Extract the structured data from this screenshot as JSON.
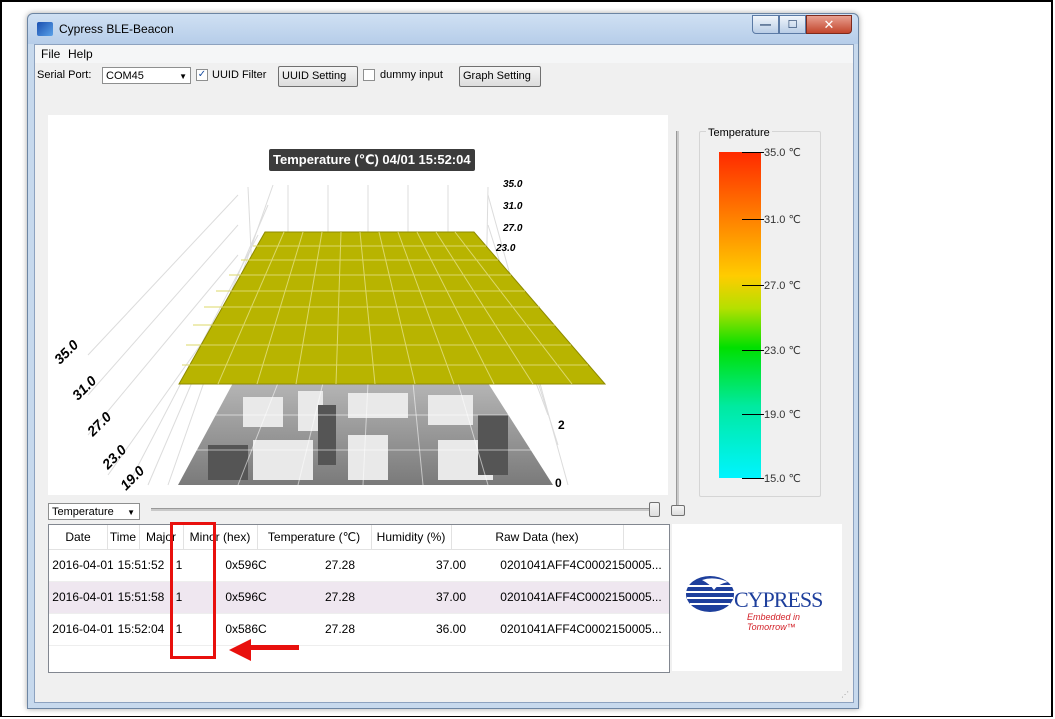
{
  "window": {
    "title": "Cypress BLE-Beacon",
    "min": "—",
    "max": "☐",
    "close": "✕"
  },
  "menu": [
    "File",
    "Help"
  ],
  "toolbar": {
    "serial_label": "Serial Port:",
    "serial_value": "COM45",
    "uuid_filter_label": "UUID Filter",
    "uuid_filter_checked": "✓",
    "uuid_setting_label": "UUID Setting",
    "dummy_input_label": "dummy input",
    "graph_setting_label": "Graph Setting"
  },
  "chart": {
    "title": "Temperature (℃)  04/01 15:52:04",
    "back_ticks": [
      "35.0",
      "31.0",
      "27.0",
      "23.0"
    ],
    "left_ticks": [
      "35.0",
      "31.0",
      "27.0",
      "23.0",
      "19.0"
    ],
    "right_tick": "2",
    "front_tick": "0",
    "surface_color": "#b8b400"
  },
  "legend": {
    "title": "Temperature",
    "labels": [
      "35.0 ℃",
      "31.0 ℃",
      "27.0 ℃",
      "23.0 ℃",
      "19.0 ℃",
      "15.0 ℃"
    ]
  },
  "bottom": {
    "dropdown_value": "Temperature"
  },
  "table": {
    "columns": [
      "Date",
      "Time",
      "Major",
      "Minor (hex)",
      "Temperature (℃)",
      "Humidity (%)",
      "Raw Data (hex)"
    ],
    "rows": [
      [
        "2016-04-01",
        "15:51:52",
        "1",
        "0x596C",
        "27.28",
        "37.00",
        "0201041AFF4C0002150005..."
      ],
      [
        "2016-04-01",
        "15:51:58",
        "1",
        "0x596C",
        "27.28",
        "37.00",
        "0201041AFF4C0002150005..."
      ],
      [
        "2016-04-01",
        "15:52:04",
        "1",
        "0x586C",
        "27.28",
        "36.00",
        "0201041AFF4C0002150005..."
      ]
    ]
  },
  "logo": {
    "text": "CYPRESS",
    "tagline": "Embedded in Tomorrow™"
  }
}
